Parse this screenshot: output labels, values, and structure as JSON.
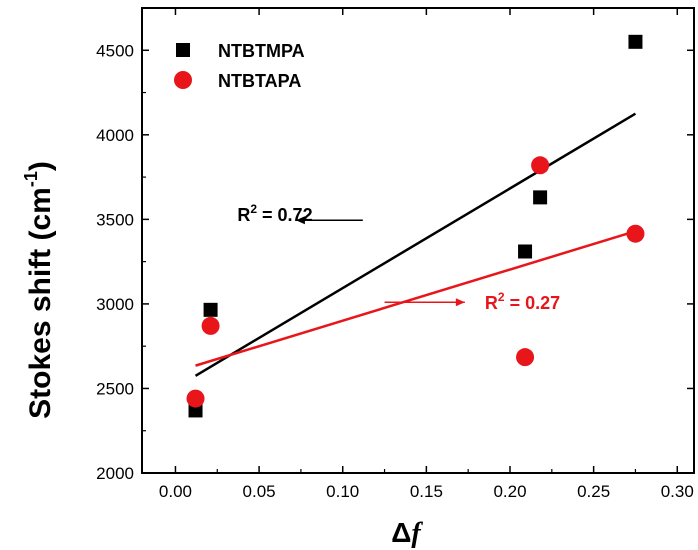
{
  "chart_data": {
    "type": "scatter",
    "xlabel": "Δf",
    "ylabel": "Stokes shift (cm-1)",
    "ylabel_parts": {
      "main": "Stokes shift (cm",
      "sup": "-1",
      "close": ")"
    },
    "xlabel_parts": {
      "delta": "Δ",
      "f": "f"
    },
    "xlim": [
      -0.02,
      0.31
    ],
    "ylim": [
      2000,
      4750
    ],
    "xticks": [
      0.0,
      0.05,
      0.1,
      0.15,
      0.2,
      0.25,
      0.3
    ],
    "xtick_labels": [
      "0.00",
      "0.05",
      "0.10",
      "0.15",
      "0.20",
      "0.25",
      "0.30"
    ],
    "yticks": [
      2000,
      2500,
      3000,
      3500,
      4000,
      4500
    ],
    "ytick_labels": [
      "2000",
      "2500",
      "3000",
      "3500",
      "4000",
      "4500"
    ],
    "legend_position": "top-left",
    "grid": false,
    "series": [
      {
        "name": "NTBTMPA",
        "marker": "square",
        "color": "#000000",
        "points": [
          [
            0.012,
            2370
          ],
          [
            0.021,
            2965
          ],
          [
            0.209,
            3310
          ],
          [
            0.218,
            3630
          ],
          [
            0.275,
            4550
          ]
        ],
        "fit": {
          "x": [
            0.012,
            0.275
          ],
          "y": [
            2575,
            4125
          ],
          "r2_label": "R",
          "r2_sup": "2",
          "r2_value": " = 0.72"
        }
      },
      {
        "name": "NTBTAPA",
        "marker": "circle",
        "color": "#e8151b",
        "points": [
          [
            0.012,
            2440
          ],
          [
            0.021,
            2870
          ],
          [
            0.209,
            2685
          ],
          [
            0.218,
            3820
          ],
          [
            0.275,
            3415
          ]
        ],
        "fit": {
          "x": [
            0.012,
            0.275
          ],
          "y": [
            2635,
            3430
          ],
          "r2_label": "R",
          "r2_sup": "2",
          "r2_value": " = 0.27"
        }
      }
    ],
    "annotations": [
      {
        "series": 0,
        "text_x": 0.037,
        "text_y": 3490,
        "arrow_from_x": 0.112,
        "arrow_to_x": 0.072,
        "arrow_y": 3495
      },
      {
        "series": 1,
        "text_x": 0.185,
        "text_y": 2970,
        "arrow_from_x": 0.125,
        "arrow_to_x": 0.173,
        "arrow_y": 3010
      }
    ]
  }
}
